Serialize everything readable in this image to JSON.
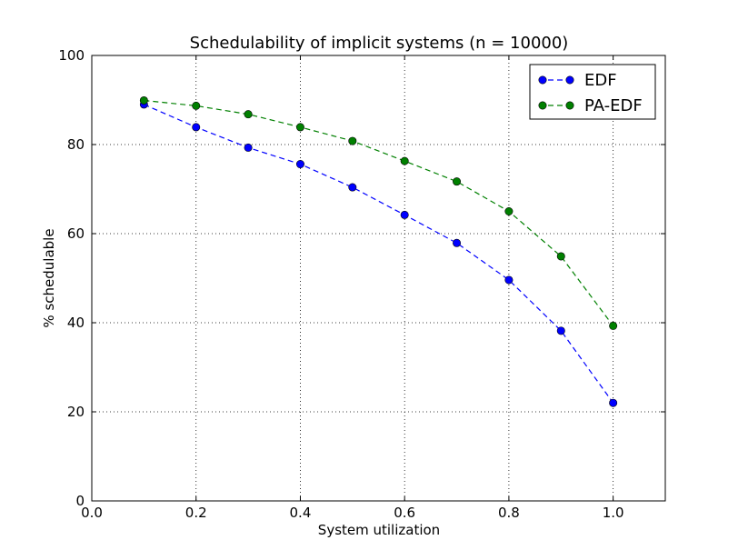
{
  "chart_data": {
    "type": "line",
    "title": "Schedulability of implicit systems (n = 10000)",
    "xlabel": "System utilization",
    "ylabel": "% schedulable",
    "xlim": [
      0.0,
      1.1
    ],
    "ylim": [
      0,
      100
    ],
    "xticks": [
      "0.0",
      "0.2",
      "0.4",
      "0.6",
      "0.8",
      "1.0"
    ],
    "xtick_values": [
      0.0,
      0.2,
      0.4,
      0.6,
      0.8,
      1.0
    ],
    "yticks": [
      "0",
      "20",
      "40",
      "60",
      "80",
      "100"
    ],
    "ytick_values": [
      0,
      20,
      40,
      60,
      80,
      100
    ],
    "grid": true,
    "legend_position": "top-right",
    "x": [
      0.1,
      0.2,
      0.3,
      0.4,
      0.5,
      0.6,
      0.7,
      0.8,
      0.9,
      1.0
    ],
    "series": [
      {
        "name": "EDF",
        "color": "#0000ff",
        "line_style": "dashed",
        "marker": "circle",
        "values": [
          89.0,
          83.9,
          79.3,
          75.6,
          70.4,
          64.2,
          57.9,
          49.6,
          38.2,
          22.0
        ]
      },
      {
        "name": "PA-EDF",
        "color": "#008000",
        "line_style": "dashed",
        "marker": "circle",
        "values": [
          89.9,
          88.7,
          86.8,
          83.9,
          80.8,
          76.3,
          71.7,
          65.0,
          54.9,
          39.3
        ]
      }
    ]
  }
}
